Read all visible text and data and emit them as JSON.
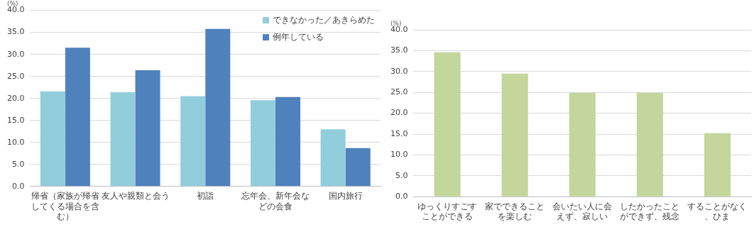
{
  "chart_data": [
    {
      "type": "bar",
      "ylabel": "(%)",
      "categories": [
        "帰省（家族が帰省してくる場合を含む）",
        "友人や親類と会う",
        "初詣",
        "忘年会、新年会などの会食",
        "国内旅行"
      ],
      "series": [
        {
          "name": "できなかった／あきらめた",
          "color": "#92cddc",
          "values": [
            21.6,
            21.4,
            20.5,
            19.6,
            13.0
          ]
        },
        {
          "name": "例年している",
          "color": "#4f81bd",
          "values": [
            31.5,
            26.4,
            35.8,
            20.3,
            8.7
          ]
        }
      ],
      "ylim": [
        0,
        40
      ],
      "yticks": [
        {
          "value": 0,
          "label": "0.0"
        },
        {
          "value": 5,
          "label": "5.0"
        },
        {
          "value": 10,
          "label": "10.0"
        },
        {
          "value": 15,
          "label": "15.0"
        },
        {
          "value": 20,
          "label": "20.0"
        },
        {
          "value": 25,
          "label": "25.0"
        },
        {
          "value": 30,
          "label": "30.0"
        },
        {
          "value": 35,
          "label": "35.0"
        },
        {
          "value": 40,
          "label": "40.0"
        }
      ],
      "grid": "y",
      "legend": "top right"
    },
    {
      "type": "bar",
      "ylabel": "(%)",
      "categories": [
        "ゆっくりすごすことができる",
        "家でできることを楽しむ",
        "会いたい人に会えず、寂しい",
        "したかったことができず、残念",
        "することがなく、ひま"
      ],
      "values": [
        34.6,
        29.5,
        24.9,
        24.9,
        15.2
      ],
      "color": "#c3d69b",
      "ylim": [
        0,
        40
      ],
      "yticks": [
        {
          "value": 0,
          "label": "0.0"
        },
        {
          "value": 5,
          "label": "5.0"
        },
        {
          "value": 10,
          "label": "10.0"
        },
        {
          "value": 15,
          "label": "15.0"
        },
        {
          "value": 20,
          "label": "20.0"
        },
        {
          "value": 25,
          "label": "25.0"
        },
        {
          "value": 30,
          "label": "30.0"
        },
        {
          "value": 35,
          "label": "35.0"
        },
        {
          "value": 40,
          "label": "40.0"
        }
      ],
      "grid": "y"
    }
  ]
}
